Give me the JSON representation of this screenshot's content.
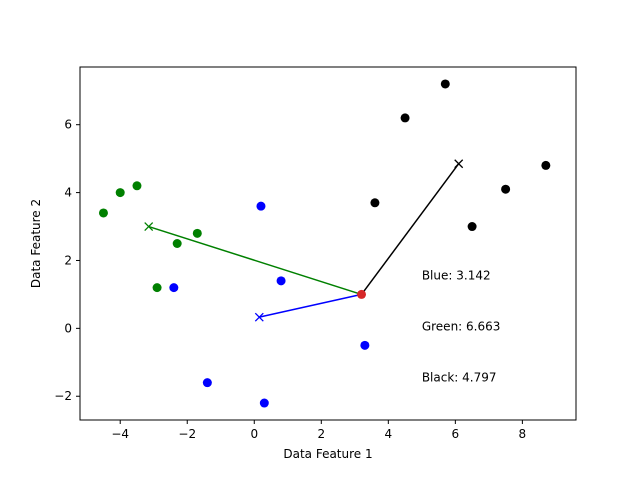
{
  "chart_data": {
    "type": "scatter",
    "title": "",
    "xlabel": "Data Feature 1",
    "ylabel": "Data Feature 2",
    "xlim": [
      -5.2,
      9.6
    ],
    "ylim": [
      -2.7,
      7.7
    ],
    "xticks": [
      -4,
      -2,
      0,
      2,
      4,
      6,
      8
    ],
    "yticks": [
      -2,
      0,
      2,
      4,
      6
    ],
    "grid": false,
    "series": [
      {
        "color": "#0000ff",
        "points": [
          [
            0.2,
            3.6
          ],
          [
            0.8,
            1.4
          ],
          [
            -2.4,
            1.2
          ],
          [
            3.3,
            -0.5
          ],
          [
            -1.4,
            -1.6
          ],
          [
            0.3,
            -2.2
          ]
        ]
      },
      {
        "color": "#008000",
        "points": [
          [
            -4.5,
            3.4
          ],
          [
            -4.0,
            4.0
          ],
          [
            -3.5,
            4.2
          ],
          [
            -2.3,
            2.5
          ],
          [
            -1.7,
            2.8
          ],
          [
            -2.9,
            1.2
          ]
        ]
      },
      {
        "color": "#000000",
        "points": [
          [
            5.7,
            7.2
          ],
          [
            4.5,
            6.2
          ],
          [
            3.6,
            3.7
          ],
          [
            8.7,
            4.8
          ],
          [
            7.5,
            4.1
          ],
          [
            6.5,
            3.0
          ]
        ]
      }
    ],
    "query_point": {
      "x": 3.2,
      "y": 1.0,
      "color": "#d62728"
    },
    "centroids": [
      {
        "x": 0.15,
        "y": 0.33,
        "color": "#0000ff",
        "marker": "x"
      },
      {
        "x": -3.15,
        "y": 3.0,
        "color": "#008000",
        "marker": "x"
      },
      {
        "x": 6.1,
        "y": 4.85,
        "color": "#000000",
        "marker": "x"
      }
    ],
    "annotations": [
      {
        "text": "Blue: 3.142",
        "x": 5.0,
        "y": 1.55
      },
      {
        "text": "Green: 6.663",
        "x": 5.0,
        "y": 0.05
      },
      {
        "text": "Black: 4.797",
        "x": 5.0,
        "y": -1.45
      }
    ]
  }
}
